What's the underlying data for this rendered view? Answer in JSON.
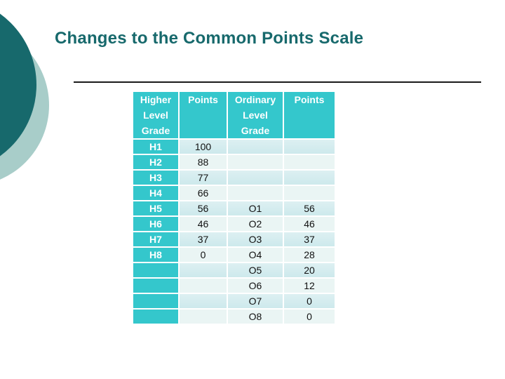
{
  "title": "Changes to the Common Points Scale",
  "table": {
    "headers": [
      "Higher Level Grade",
      "Points",
      "Ordinary Level Grade",
      "Points"
    ],
    "rows": [
      [
        "H1",
        "100",
        "",
        ""
      ],
      [
        "H2",
        "88",
        "",
        ""
      ],
      [
        "H3",
        "77",
        "",
        ""
      ],
      [
        "H4",
        "66",
        "",
        ""
      ],
      [
        "H5",
        "56",
        "O1",
        "56"
      ],
      [
        "H6",
        "46",
        "O2",
        "46"
      ],
      [
        "H7",
        "37",
        "O3",
        "37"
      ],
      [
        "H8",
        "0",
        "O4",
        "28"
      ],
      [
        "",
        "",
        "O5",
        "20"
      ],
      [
        "",
        "",
        "O6",
        "12"
      ],
      [
        "",
        "",
        "O7",
        "0"
      ],
      [
        "",
        "",
        "O8",
        "0"
      ]
    ]
  },
  "colors": {
    "accent_teal": "#34c7cc",
    "dark_teal": "#17696c",
    "light_circle": "#a8cdc9",
    "band_dark": "#cde9ec",
    "band_light": "#eaf5f4",
    "rule_line": "#1a1a1a"
  }
}
